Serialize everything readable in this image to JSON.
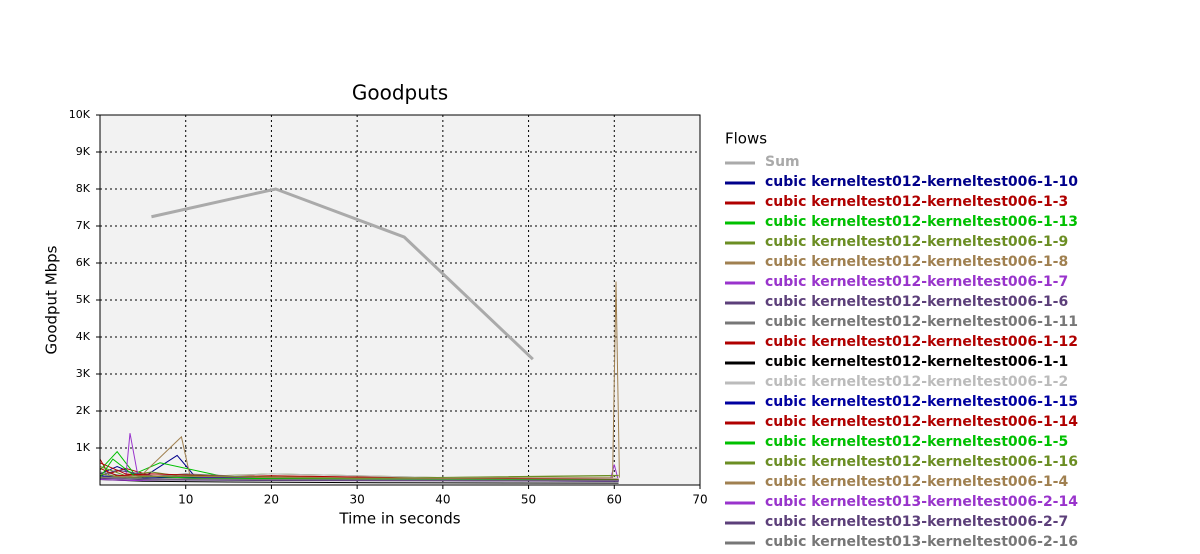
{
  "chart_data": {
    "type": "line",
    "title": "Goodputs",
    "x_label": "Time in seconds",
    "y_label": "Goodput Mbps",
    "legend_title": "Flows",
    "legend": "outside-right",
    "grid": true,
    "xlim": [
      0,
      70
    ],
    "xticks": [
      10,
      20,
      30,
      40,
      50,
      60,
      70
    ],
    "ylim": [
      0,
      10000
    ],
    "yticks": [
      {
        "value": 1000,
        "label": "1K"
      },
      {
        "value": 2000,
        "label": "2K"
      },
      {
        "value": 3000,
        "label": "3K"
      },
      {
        "value": 4000,
        "label": "4K"
      },
      {
        "value": 5000,
        "label": "5K"
      },
      {
        "value": 6000,
        "label": "6K"
      },
      {
        "value": 7000,
        "label": "7K"
      },
      {
        "value": 8000,
        "label": "8K"
      },
      {
        "value": 9000,
        "label": "9K"
      },
      {
        "value": 10000,
        "label": "10K"
      }
    ],
    "series": [
      {
        "name": "Sum",
        "color": "#aaaaaa",
        "x": [
          6,
          20.5,
          35.5,
          50.5
        ],
        "values": [
          7250,
          8000,
          6700,
          3400
        ]
      },
      {
        "name": "cubic kerneltest012-kerneltest006-1-10",
        "color": "#00008b",
        "x": [
          0,
          2,
          5,
          9,
          11,
          20,
          40,
          60.5
        ],
        "values": [
          300,
          500,
          200,
          800,
          250,
          150,
          120,
          100
        ]
      },
      {
        "name": "cubic kerneltest012-kerneltest006-1-3",
        "color": "#b00000",
        "x": [
          0,
          1,
          3,
          6,
          12,
          25,
          45,
          60.5
        ],
        "values": [
          700,
          300,
          450,
          250,
          200,
          180,
          160,
          150
        ]
      },
      {
        "name": "cubic kerneltest012-kerneltest006-1-13",
        "color": "#00c000",
        "x": [
          0,
          2,
          4,
          7,
          15,
          30,
          50,
          60.5
        ],
        "values": [
          400,
          900,
          300,
          600,
          200,
          150,
          130,
          120
        ]
      },
      {
        "name": "cubic kerneltest012-kerneltest006-1-9",
        "color": "#6b8e23",
        "x": [
          0,
          3,
          6,
          10,
          20,
          40,
          60.5
        ],
        "values": [
          500,
          250,
          350,
          220,
          300,
          200,
          250
        ]
      },
      {
        "name": "cubic kerneltest012-kerneltest006-1-8",
        "color": "#a08050",
        "x": [
          0,
          5,
          9.5,
          10.5,
          20,
          40,
          60.5
        ],
        "values": [
          200,
          300,
          1300,
          250,
          220,
          200,
          180
        ]
      },
      {
        "name": "cubic kerneltest012-kerneltest006-1-7",
        "color": "#9933cc",
        "x": [
          0,
          3,
          3.5,
          4.5,
          10,
          30,
          59.5,
          60,
          60.5
        ],
        "values": [
          300,
          200,
          1400,
          150,
          200,
          150,
          100,
          550,
          100
        ]
      },
      {
        "name": "cubic kerneltest012-kerneltest006-1-6",
        "color": "#5c3f7a",
        "x": [
          0,
          2,
          8,
          20,
          40,
          60.5
        ],
        "values": [
          250,
          400,
          180,
          140,
          120,
          100
        ]
      },
      {
        "name": "cubic kerneltest012-kerneltest006-1-11",
        "color": "#777777",
        "x": [
          0,
          4,
          10,
          25,
          45,
          60.5
        ],
        "values": [
          350,
          200,
          300,
          150,
          130,
          120
        ]
      },
      {
        "name": "cubic kerneltest012-kerneltest006-1-12",
        "color": "#b00000",
        "x": [
          0,
          3,
          8,
          20,
          40,
          60.5
        ],
        "values": [
          600,
          300,
          200,
          250,
          180,
          160
        ]
      },
      {
        "name": "cubic kerneltest012-kerneltest006-1-1",
        "color": "#000000",
        "x": [
          0,
          5,
          15,
          35,
          60.5
        ],
        "values": [
          150,
          100,
          80,
          60,
          50
        ]
      },
      {
        "name": "cubic kerneltest012-kerneltest006-1-2",
        "color": "#bbbbbb",
        "x": [
          0,
          5,
          20,
          40,
          60.5
        ],
        "values": [
          200,
          150,
          300,
          200,
          180
        ]
      },
      {
        "name": "cubic kerneltest012-kerneltest006-1-15",
        "color": "#0000a0",
        "x": [
          0,
          4,
          10,
          30,
          60.5
        ],
        "values": [
          250,
          180,
          220,
          140,
          120
        ]
      },
      {
        "name": "cubic kerneltest012-kerneltest006-1-14",
        "color": "#b00000",
        "x": [
          0,
          2,
          6,
          20,
          40,
          60.5
        ],
        "values": [
          450,
          250,
          300,
          200,
          170,
          150
        ]
      },
      {
        "name": "cubic kerneltest012-kerneltest006-1-5",
        "color": "#00c000",
        "x": [
          0,
          1.5,
          4,
          12,
          35,
          60.5
        ],
        "values": [
          200,
          700,
          250,
          180,
          160,
          140
        ]
      },
      {
        "name": "cubic kerneltest012-kerneltest006-1-16",
        "color": "#6b8e23",
        "x": [
          0,
          3,
          10,
          30,
          60.5
        ],
        "values": [
          300,
          200,
          250,
          180,
          260
        ]
      },
      {
        "name": "cubic kerneltest012-kerneltest006-1-4",
        "color": "#a08050",
        "x": [
          0,
          5,
          20,
          40,
          59.8,
          60.2,
          60.6
        ],
        "values": [
          200,
          250,
          200,
          180,
          200,
          5500,
          200
        ]
      },
      {
        "name": "cubic kerneltest013-kerneltest006-2-14",
        "color": "#9933cc",
        "x": [
          0,
          4,
          12,
          30,
          60.5
        ],
        "values": [
          150,
          120,
          160,
          130,
          110
        ]
      },
      {
        "name": "cubic kerneltest013-kerneltest006-2-7",
        "color": "#5c3f7a",
        "x": [
          0,
          6,
          20,
          45,
          60.5
        ],
        "values": [
          180,
          140,
          120,
          110,
          100
        ]
      },
      {
        "name": "cubic kerneltest013-kerneltest006-2-16",
        "color": "#777777",
        "x": [
          0,
          5,
          18,
          40,
          60.5
        ],
        "values": [
          220,
          170,
          150,
          140,
          130
        ]
      }
    ]
  }
}
